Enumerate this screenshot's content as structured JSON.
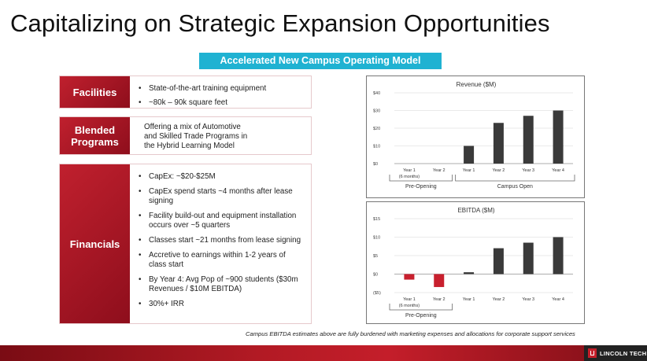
{
  "title": "Capitalizing on Strategic Expansion Opportunities",
  "banner": "Accelerated New Campus Operating Model",
  "facilities": {
    "label": "Facilities",
    "bullets": [
      "State-of-the-art training equipment",
      "~80k – 90k square feet"
    ]
  },
  "blended": {
    "label": "Blended\nPrograms",
    "text": "Offering a mix of Automotive\nand Skilled Trade Programs in\nthe Hybrid Learning Model"
  },
  "financials": {
    "label": "Financials",
    "bullets": [
      "CapEx: ~$20-$25M",
      "CapEx spend starts ~4 months after lease signing",
      "Facility build-out and equipment installation occurs over ~5 quarters",
      "Classes start ~21 months from lease signing",
      "Accretive to earnings within 1-2 years of class start",
      "By Year 4: Avg Pop of ~900 students ($30m Revenues / $10M EBITDA)",
      "30%+ IRR"
    ]
  },
  "footnote": "Campus EBITDA estimates above are fully burdened with  marketing expenses and allocations for corporate support services",
  "logo_text": "LINCOLN TECH",
  "colors": {
    "accent_red": "#c41e2a",
    "banner_blue": "#1fb2d2",
    "bar_gray": "#3a3a3a",
    "neg_red": "#c8202e"
  },
  "chart_data": [
    {
      "type": "bar",
      "title": "Revenue ($M)",
      "categories": [
        "Year 1",
        "Year 2",
        "Year 1",
        "Year 2",
        "Year 3",
        "Year 4"
      ],
      "sub_label": "(6 months)",
      "values": [
        0,
        0,
        10,
        23,
        27,
        30
      ],
      "ylim": [
        0,
        40
      ],
      "yticks": [
        "$40",
        "$30",
        "$20",
        "$10",
        "$0"
      ],
      "groups": [
        "Pre-Opening",
        "Campus Open"
      ]
    },
    {
      "type": "bar",
      "title": "EBITDA ($M)",
      "categories": [
        "Year 1",
        "Year 2",
        "Year 1",
        "Year 2",
        "Year 3",
        "Year 4"
      ],
      "sub_label": "(6 months)",
      "values": [
        -1.5,
        -3.5,
        0.5,
        7,
        8.5,
        10
      ],
      "ylim": [
        -5,
        15
      ],
      "yticks": [
        "$15",
        "$10",
        "$5",
        "$0",
        "($5)"
      ],
      "groups": [
        "Pre-Opening"
      ]
    }
  ]
}
